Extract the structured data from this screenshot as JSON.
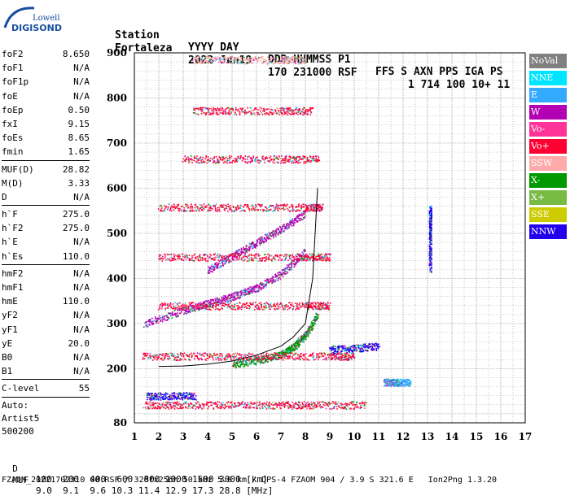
{
  "logo": {
    "line1": "Lowell",
    "line2": "DIGISONDE"
  },
  "header": {
    "row1": [
      "Station",
      "YYYY DAY",
      "DDD HHMMSS P1",
      "FFS S AXN PPS IGA PS"
    ],
    "row2": [
      "Fortaleza",
      "2022 Jun19",
      "170 231000 RSF",
      "1 714 100 10+ 11"
    ]
  },
  "params": {
    "group1": [
      {
        "name": "foF2",
        "value": "8.650"
      },
      {
        "name": "foF1",
        "value": "N/A"
      },
      {
        "name": "foF1p",
        "value": "N/A"
      },
      {
        "name": "foE",
        "value": "N/A"
      },
      {
        "name": "foEp",
        "value": "0.50"
      },
      {
        "name": "fxI",
        "value": "9.15"
      },
      {
        "name": "foEs",
        "value": "8.65"
      },
      {
        "name": "fmin",
        "value": "1.65"
      }
    ],
    "group2": [
      {
        "name": "MUF(D)",
        "value": "28.82"
      },
      {
        "name": "M(D)",
        "value": "3.33"
      },
      {
        "name": "D",
        "value": "N/A"
      }
    ],
    "group3": [
      {
        "name": "h`F",
        "value": "275.0"
      },
      {
        "name": "h`F2",
        "value": "275.0"
      },
      {
        "name": "h`E",
        "value": "N/A"
      },
      {
        "name": "h`Es",
        "value": "110.0"
      }
    ],
    "group4": [
      {
        "name": "hmF2",
        "value": "N/A"
      },
      {
        "name": "hmF1",
        "value": "N/A"
      },
      {
        "name": "hmE",
        "value": "110.0"
      },
      {
        "name": "yF2",
        "value": "N/A"
      },
      {
        "name": "yF1",
        "value": "N/A"
      },
      {
        "name": "yE",
        "value": "20.0"
      },
      {
        "name": "B0",
        "value": "N/A"
      },
      {
        "name": "B1",
        "value": "N/A"
      }
    ],
    "clevel": {
      "name": "C-level",
      "value": "55"
    },
    "auto": [
      "Auto:",
      "Artist5",
      "500200"
    ]
  },
  "legend": [
    {
      "label": "NoVal",
      "color": "#808080"
    },
    {
      "label": "NNE",
      "color": "#00e5ff"
    },
    {
      "label": "E",
      "color": "#33aaff"
    },
    {
      "label": "W",
      "color": "#b300b3"
    },
    {
      "label": "Vo-",
      "color": "#ff3399"
    },
    {
      "label": "Vo+",
      "color": "#ff0033"
    },
    {
      "label": "SSW",
      "color": "#ffaaaa"
    },
    {
      "label": "X-",
      "color": "#009900"
    },
    {
      "label": "X+",
      "color": "#77bb44"
    },
    {
      "label": "SSE",
      "color": "#cccc00"
    },
    {
      "label": "NNW",
      "color": "#2200ee"
    }
  ],
  "bottom": {
    "d_label": "D",
    "d_values": "100  200  400  600  800 1000 1500 3000 [km]",
    "muf_label": "MUF",
    "muf_values": "9.0  9.1  9.6 10.3 11.4 12.9 17.3 28.8 [MHz]",
    "footer": "FZAOM_20221702310 00.RSF / 320fx256h 50 kHz 5.0 km / DPS-4 FZAOM 904 / 3.9 S 321.6 E   Ion2Png 1.3.20"
  },
  "chart_data": {
    "type": "scatter",
    "title": "",
    "xlabel": "",
    "ylabel": "",
    "xlim": [
      1,
      17
    ],
    "ylim": [
      80,
      900
    ],
    "xticks": [
      1,
      2,
      3,
      4,
      5,
      6,
      7,
      8,
      9,
      10,
      11,
      12,
      13,
      14,
      15,
      16,
      17
    ],
    "yticks": [
      80,
      200,
      300,
      400,
      500,
      600,
      700,
      800,
      900
    ],
    "grid": true,
    "legend_position": "right",
    "trace": {
      "name": "",
      "x": [
        2.0,
        3.0,
        4.0,
        5.0,
        6.0,
        7.0,
        7.5,
        8.0,
        8.3,
        8.5
      ],
      "y": [
        205,
        206,
        210,
        217,
        230,
        250,
        270,
        300,
        400,
        600
      ]
    },
    "bands": [
      {
        "mode": "W",
        "x": [
          1.4,
          3.0,
          4.0,
          5.0,
          6.0,
          7.0,
          8.0
        ],
        "y": [
          300,
          330,
          345,
          360,
          380,
          410,
          460
        ]
      },
      {
        "mode": "W",
        "x": [
          4.0,
          5.0,
          6.0,
          7.0,
          8.0
        ],
        "y": [
          420,
          450,
          480,
          510,
          545
        ]
      },
      {
        "mode": "X-",
        "x": [
          5.0,
          6.0,
          7.0,
          7.5,
          8.0,
          8.5
        ],
        "y": [
          210,
          218,
          232,
          248,
          275,
          320
        ]
      },
      {
        "mode": "Vo+",
        "x": [
          1.4,
          3.0,
          5.0,
          7.0,
          8.5,
          10.5
        ],
        "y": [
          120,
          120,
          120,
          120,
          120,
          120
        ]
      },
      {
        "mode": "Vo+",
        "x": [
          1.3,
          3.0,
          5.0,
          7.0,
          9.0,
          10.0
        ],
        "y": [
          228,
          228,
          228,
          228,
          228,
          228
        ]
      },
      {
        "mode": "Vo+",
        "x": [
          2.0,
          4.0,
          6.0,
          8.0,
          9.0
        ],
        "y": [
          340,
          340,
          340,
          340,
          340
        ]
      },
      {
        "mode": "Vo+",
        "x": [
          2.0,
          4.0,
          6.0,
          8.0,
          9.0
        ],
        "y": [
          448,
          448,
          448,
          448,
          448
        ]
      },
      {
        "mode": "Vo+",
        "x": [
          2.0,
          4.0,
          6.0,
          8.0,
          8.7
        ],
        "y": [
          558,
          558,
          558,
          558,
          558
        ]
      },
      {
        "mode": "Vo+",
        "x": [
          3.0,
          5.0,
          7.0,
          8.6
        ],
        "y": [
          665,
          665,
          665,
          665
        ]
      },
      {
        "mode": "Vo+",
        "x": [
          3.4,
          5.0,
          7.0,
          8.3
        ],
        "y": [
          772,
          772,
          772,
          772
        ]
      },
      {
        "mode": "SSW",
        "x": [
          3.4,
          5.0,
          7.0,
          8.0
        ],
        "y": [
          885,
          885,
          885,
          885
        ]
      },
      {
        "mode": "NNW",
        "x": [
          9.0,
          10.0,
          11.0
        ],
        "y": [
          243,
          246,
          250
        ]
      },
      {
        "mode": "NNW",
        "x": [
          1.5,
          2.5,
          3.5
        ],
        "y": [
          140,
          140,
          140
        ]
      },
      {
        "mode": "E",
        "x": [
          11.2,
          11.7,
          12.3
        ],
        "y": [
          170,
          170,
          170
        ]
      },
      {
        "mode": "NNW",
        "x": [
          13.1,
          13.1,
          13.1
        ],
        "y": [
          420,
          500,
          560
        ]
      }
    ]
  }
}
